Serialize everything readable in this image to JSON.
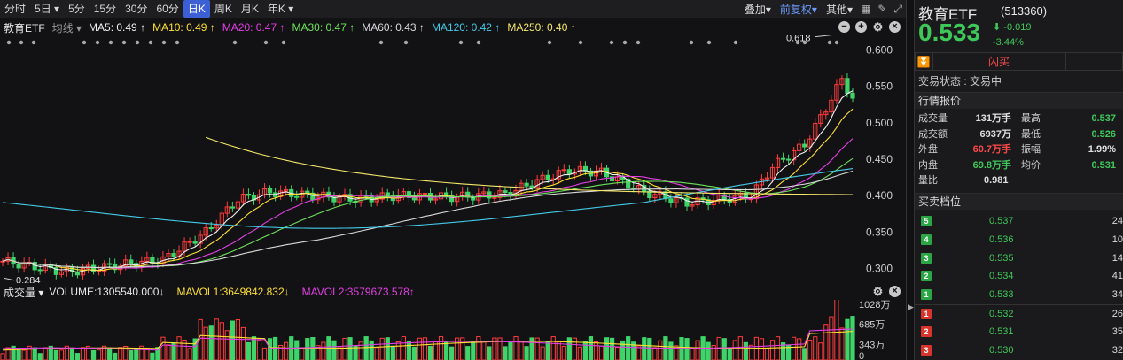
{
  "toolbar": {
    "tabs": [
      "分时",
      "5日",
      "5分",
      "15分",
      "30分",
      "60分",
      "日K",
      "周K",
      "月K",
      "年K"
    ],
    "tab_arrows": [
      "",
      "▾",
      "",
      "",
      "",
      "",
      "",
      "",
      "",
      "▾"
    ],
    "active_tab": "日K",
    "overlay": "叠加▾",
    "adjust": "前复权▾",
    "other": "其他▾"
  },
  "ma_line": {
    "indicator": "教育ETF",
    "avg": "均线 ▾",
    "items": [
      {
        "text": "MA5: 0.49 ↑",
        "color": "#f0f0f0"
      },
      {
        "text": "MA10: 0.49 ↑",
        "color": "#ffe033"
      },
      {
        "text": "MA20: 0.47 ↑",
        "color": "#e43fe4"
      },
      {
        "text": "MA30: 0.47 ↑",
        "color": "#6de25b"
      },
      {
        "text": "MA60: 0.43 ↑",
        "color": "#d9d9d9"
      },
      {
        "text": "MA120: 0.42 ↑",
        "color": "#44c9e8"
      },
      {
        "text": "MA250: 0.40 ↑",
        "color": "#f5e86a"
      }
    ]
  },
  "price_axis": [
    "0.600",
    "0.550",
    "0.500",
    "0.450",
    "0.400",
    "0.350",
    "0.300"
  ],
  "annotations": {
    "high": "0.618",
    "low": "0.284"
  },
  "volume": {
    "title": "成交量 ▾",
    "items": [
      {
        "text": "VOLUME:1305540.000↓",
        "color": "#e8e8ea"
      },
      {
        "text": "MAVOL1:3649842.832↓",
        "color": "#ffe033"
      },
      {
        "text": "MAVOL2:3579673.578↑",
        "color": "#e43fe4"
      }
    ],
    "axis": [
      "1028万",
      "685万",
      "343万",
      "0"
    ]
  },
  "chart_data": {
    "type": "candlestick",
    "y_axis_range": [
      0.28,
      0.62
    ],
    "high": 0.618,
    "low": 0.284,
    "ma_values": {
      "MA5": 0.49,
      "MA10": 0.49,
      "MA20": 0.47,
      "MA30": 0.47,
      "MA60": 0.43,
      "MA120": 0.42,
      "MA250": 0.4
    },
    "colors": {
      "up": "#ff3b3b",
      "down": "#3fd46a"
    }
  },
  "quote": {
    "name": "教育ETF",
    "code": "(513360)",
    "price": "0.533",
    "change": "-0.019",
    "change_pct": "-3.44%",
    "flash": "闪买",
    "trade_status": "交易状态 : 交易中",
    "market_title": "行情报价",
    "stats": [
      {
        "l1": "成交量",
        "v1": "131万手",
        "l2": "最高",
        "v2": "0.537",
        "c1": "",
        "c2": "grn"
      },
      {
        "l1": "成交额",
        "v1": "6937万",
        "l2": "最低",
        "v2": "0.526",
        "c1": "",
        "c2": "grn"
      },
      {
        "l1": "外盘",
        "v1": "60.7万手",
        "l2": "振幅",
        "v2": "1.99%",
        "c1": "red",
        "c2": ""
      },
      {
        "l1": "内盘",
        "v1": "69.8万手",
        "l2": "均价",
        "v2": "0.531",
        "c1": "grn",
        "c2": "grn"
      }
    ],
    "ratio_label": "量比",
    "ratio": "0.981",
    "orderbook_title": "买卖档位",
    "sells": [
      {
        "n": "5",
        "p": "0.537",
        "v": "24"
      },
      {
        "n": "4",
        "p": "0.536",
        "v": "10"
      },
      {
        "n": "3",
        "p": "0.535",
        "v": "14"
      },
      {
        "n": "2",
        "p": "0.534",
        "v": "41"
      },
      {
        "n": "1",
        "p": "0.533",
        "v": "34"
      }
    ],
    "buys": [
      {
        "n": "1",
        "p": "0.532",
        "v": "26"
      },
      {
        "n": "2",
        "p": "0.531",
        "v": "35"
      },
      {
        "n": "3",
        "p": "0.530",
        "v": "32"
      }
    ]
  }
}
